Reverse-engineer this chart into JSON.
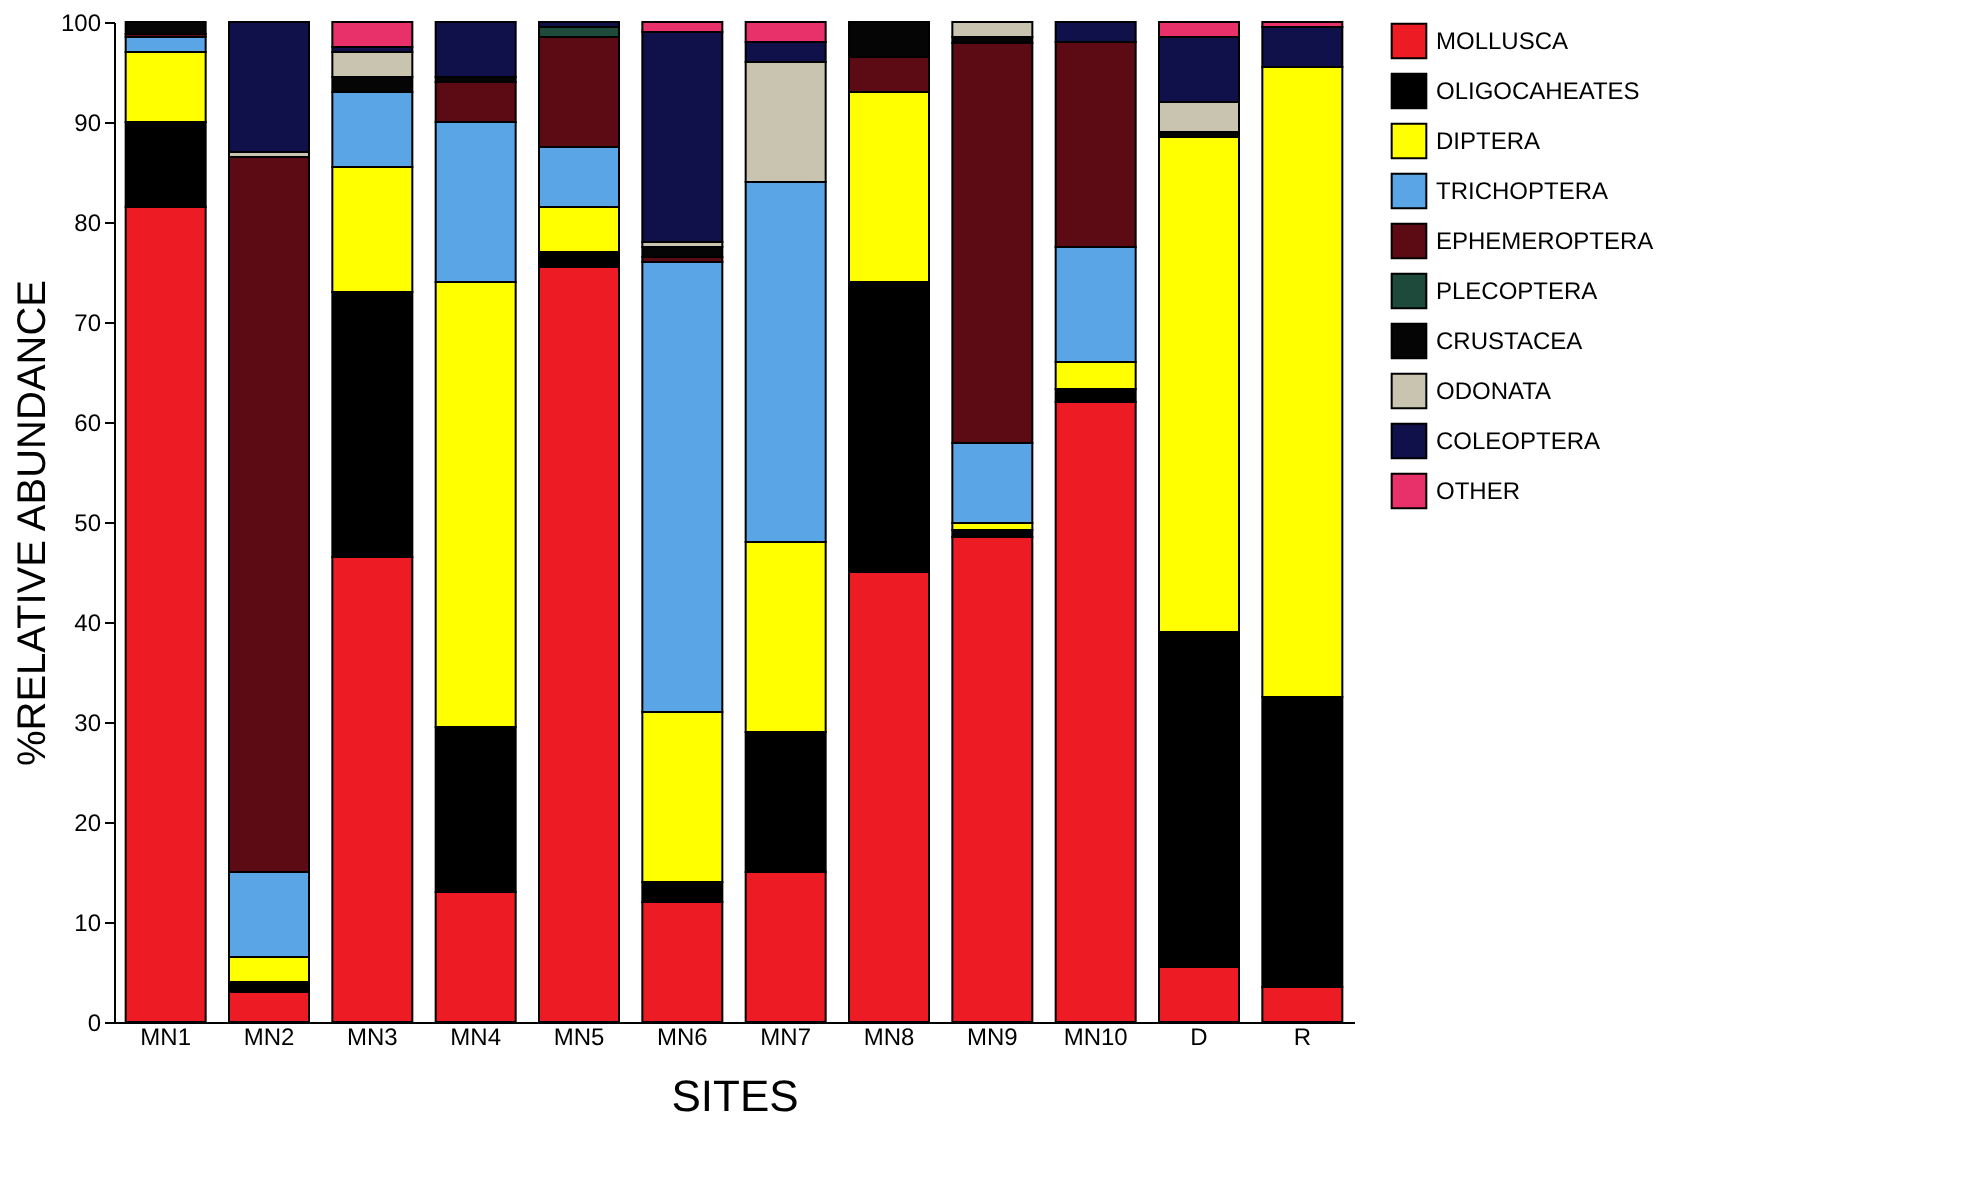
{
  "chart_data": {
    "type": "bar",
    "stacked": true,
    "xlabel": "SITES",
    "ylabel": "%RELATIVE ABUNDANCE",
    "categories": [
      "MN1",
      "MN2",
      "MN3",
      "MN4",
      "MN5",
      "MN6",
      "MN7",
      "MN8",
      "MN9",
      "MN10",
      "D",
      "R"
    ],
    "series": [
      {
        "name": "MOLLUSCA",
        "color": "#ed1c24",
        "values": [
          81.5,
          3,
          46.5,
          13,
          75.5,
          12,
          15,
          45,
          48.5,
          62,
          5.5,
          3.5
        ]
      },
      {
        "name": "OLIGOCAHEATES",
        "color": "#000000",
        "values": [
          8.5,
          1,
          26.5,
          16.5,
          1.5,
          2,
          14,
          29,
          0.7,
          1.3,
          33.5,
          29
        ]
      },
      {
        "name": "DIPTERA",
        "color": "#ffff00",
        "values": [
          7,
          2.5,
          12.5,
          44.5,
          4.5,
          17,
          19,
          19,
          0.7,
          2.7,
          49.5,
          63
        ]
      },
      {
        "name": "TRICHOPTERA",
        "color": "#5aa5e6",
        "values": [
          1.5,
          8.5,
          7.5,
          16,
          6,
          45,
          36,
          null,
          8,
          11.5,
          null,
          null
        ]
      },
      {
        "name": "EPHEMEROPTERA",
        "color": "#5c0a14",
        "values": [
          0.3,
          71.5,
          null,
          4,
          11,
          0.5,
          null,
          3.5,
          40,
          20.5,
          null,
          null
        ]
      },
      {
        "name": "PLECOPTERA",
        "color": "#1e4a3c",
        "values": [
          null,
          null,
          null,
          null,
          1,
          null,
          null,
          null,
          null,
          null,
          null,
          null
        ]
      },
      {
        "name": "CRUSTACEA",
        "color": "#050505",
        "values": [
          1.2,
          null,
          1.5,
          0.5,
          null,
          1,
          null,
          3.5,
          0.6,
          null,
          0.5,
          null
        ]
      },
      {
        "name": "ODONATA",
        "color": "#c8c4b0",
        "values": [
          null,
          0.5,
          2.5,
          null,
          null,
          0.5,
          12,
          null,
          1.5,
          null,
          3,
          null
        ]
      },
      {
        "name": "COLEOPTERA",
        "color": "#10104a",
        "values": [
          null,
          13,
          0.5,
          5.5,
          0.5,
          21,
          2,
          null,
          null,
          2,
          6.5,
          4
        ]
      },
      {
        "name": "OTHER",
        "color": "#e8306a",
        "values": [
          null,
          null,
          2.5,
          null,
          null,
          1,
          2,
          null,
          null,
          null,
          1.5,
          0.5
        ]
      }
    ],
    "ylim": [
      0,
      100
    ],
    "yticks": [
      0,
      10,
      20,
      30,
      40,
      50,
      60,
      70,
      80,
      90,
      100
    ],
    "grid": false,
    "legend": "right"
  }
}
